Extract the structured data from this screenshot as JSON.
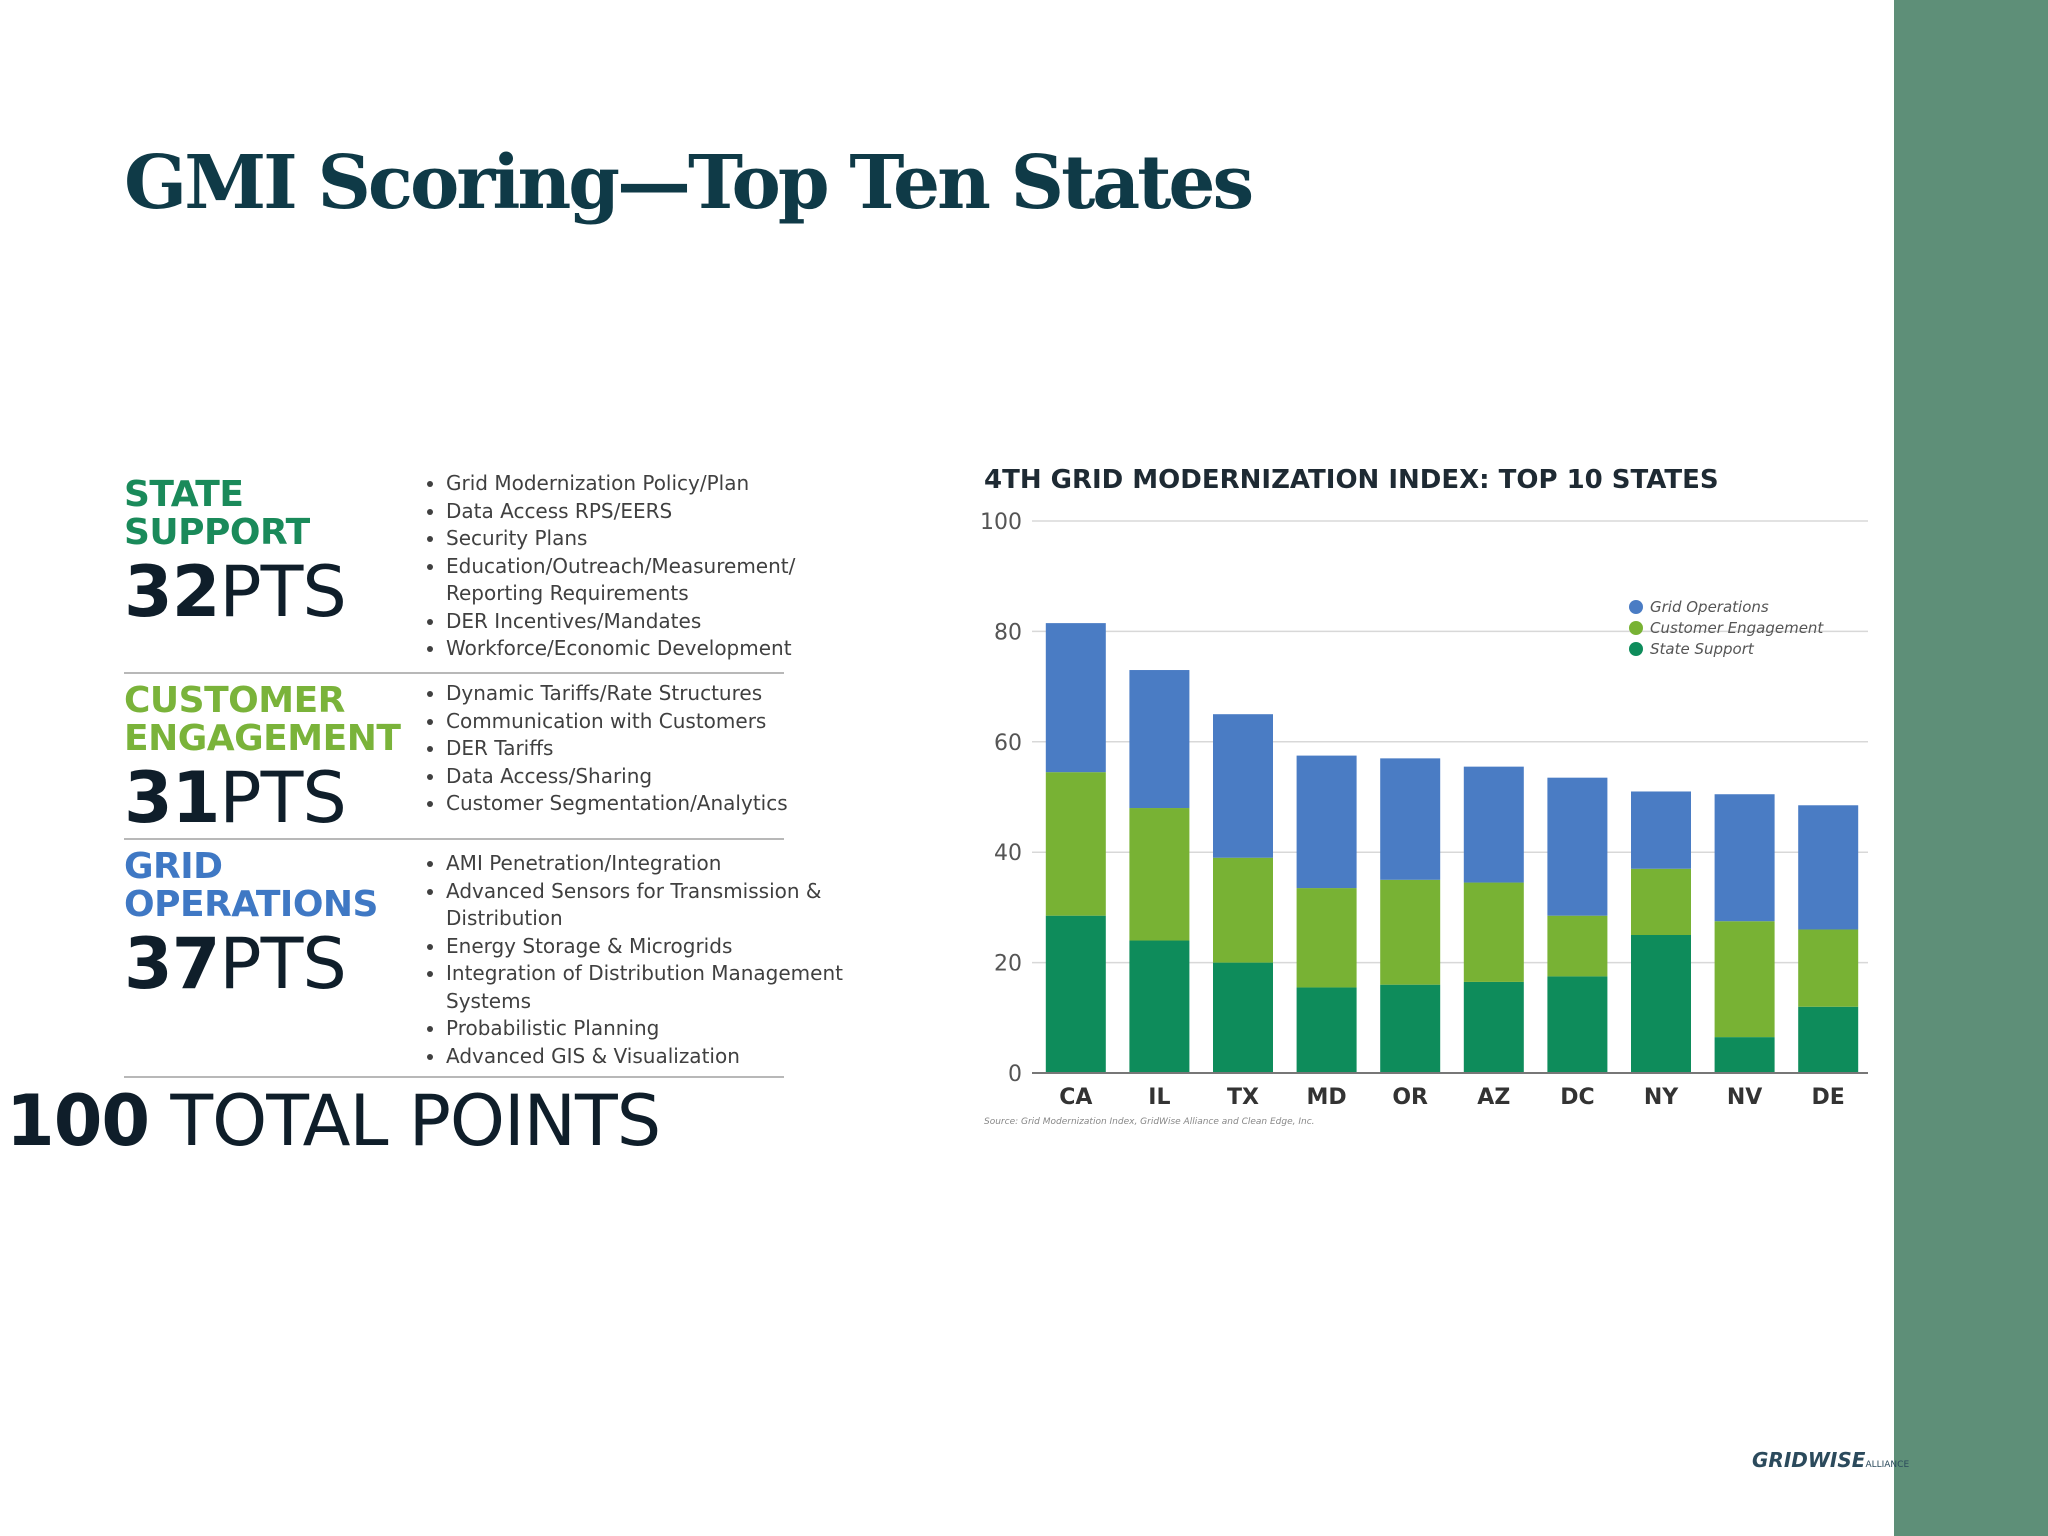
{
  "slide": {
    "title": "GMI Scoring—Top Ten States",
    "accent_band_color": "#5e8f78",
    "logo_text": "GRIDWISE",
    "logo_sub": "ALLIANCE"
  },
  "categories": [
    {
      "name": "STATE\nSUPPORT",
      "points": "32",
      "unit": "PTS",
      "color": "#1a8a5a",
      "items": [
        "Grid Modernization Policy/Plan",
        "Data Access RPS/EERS",
        "Security Plans",
        "Education/Outreach/Measurement/ Reporting Requirements",
        "DER Incentives/Mandates",
        "Workforce/Economic Development"
      ]
    },
    {
      "name": "CUSTOMER\nENGAGEMENT",
      "points": "31",
      "unit": "PTS",
      "color": "#7ab33a",
      "items": [
        "Dynamic Tariffs/Rate Structures",
        "Communication with Customers",
        "DER Tariffs",
        "Data Access/Sharing",
        "Customer Segmentation/Analytics"
      ]
    },
    {
      "name": "GRID\nOPERATIONS",
      "points": "37",
      "unit": "PTS",
      "color": "#3f78c4",
      "items": [
        "AMI Penetration/Integration",
        "Advanced Sensors for Transmission & Distribution",
        "Energy Storage & Microgrids",
        "Integration of Distribution Management Systems",
        "Probabilistic Planning",
        "Advanced GIS & Visualization"
      ]
    }
  ],
  "total": {
    "number": "100",
    "label": "TOTAL POINTS"
  },
  "chart_data": {
    "type": "bar",
    "stacked": true,
    "title": "4TH GRID MODERNIZATION INDEX: TOP 10 STATES",
    "source": "Source: Grid Modernization Index, GridWise Alliance and Clean Edge, Inc.",
    "categories": [
      "CA",
      "IL",
      "TX",
      "MD",
      "OR",
      "AZ",
      "DC",
      "NY",
      "NV",
      "DE"
    ],
    "series": [
      {
        "name": "State Support",
        "color": "#0e8c5b",
        "values": [
          28.5,
          24,
          20,
          15.5,
          16,
          16.5,
          17.5,
          25,
          6.5,
          12
        ]
      },
      {
        "name": "Customer Engagement",
        "color": "#78b234",
        "values": [
          26,
          24,
          19,
          18,
          19,
          18,
          11,
          12,
          21,
          14
        ]
      },
      {
        "name": "Grid Operations",
        "color": "#4a7cc4",
        "values": [
          27,
          25,
          26,
          24,
          22,
          21,
          25,
          14,
          23,
          22.5
        ]
      }
    ],
    "legend_order": [
      "Grid Operations",
      "Customer Engagement",
      "State Support"
    ],
    "legend_position": "top-right",
    "ylim": [
      0,
      100
    ],
    "yticks": [
      0,
      20,
      40,
      60,
      80,
      100
    ],
    "grid": true
  }
}
